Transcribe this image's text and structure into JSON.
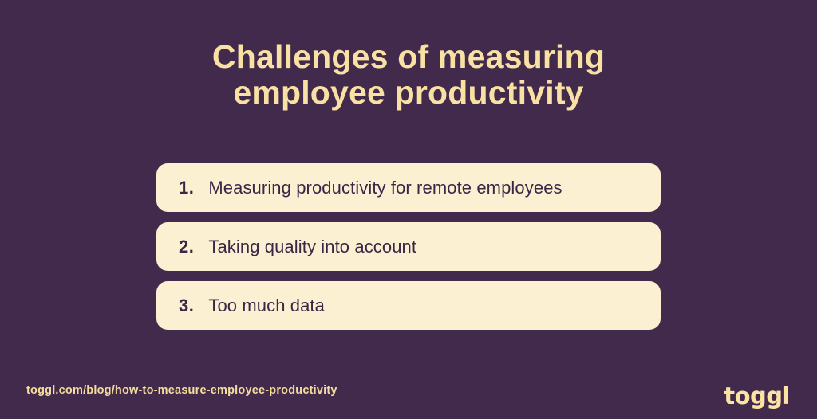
{
  "title": {
    "line1": "Challenges of measuring",
    "line2": "employee productivity"
  },
  "cards": [
    {
      "number": "1.",
      "text": "Measuring productivity for remote employees"
    },
    {
      "number": "2.",
      "text": "Taking quality into account"
    },
    {
      "number": "3.",
      "text": "Too much data"
    }
  ],
  "footer": {
    "url": "toggl.com/blog/how-to-measure-employee-productivity",
    "logo_text": "toggl"
  },
  "colors": {
    "background": "#422A4D",
    "title_text": "#F9E1A3",
    "card_background": "#FCF0D3",
    "card_text": "#3B2745",
    "footer_text": "#F4DC9E",
    "logo_text": "#FBE3A4"
  }
}
